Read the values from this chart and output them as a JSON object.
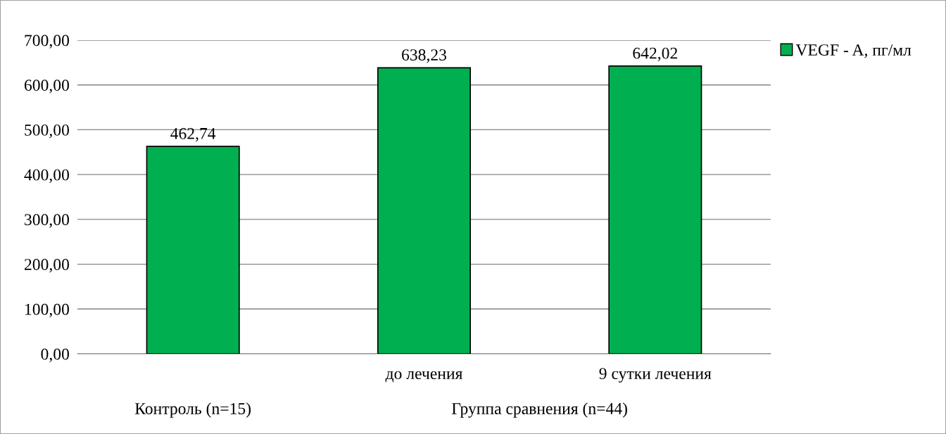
{
  "chart_data": {
    "type": "bar",
    "categories": [
      null,
      "до лечения",
      "9 сутки лечения"
    ],
    "series": [
      {
        "name": "VEGF - A, пг/мл",
        "color": "#00b050",
        "values": [
          462.74,
          638.23,
          642.02
        ],
        "value_labels": [
          "462,74",
          "638,23",
          "642,02"
        ]
      }
    ],
    "annotations": [
      "Контроль (n=15)",
      "Группа сравнения (n=44)"
    ],
    "ylim": [
      0,
      700
    ],
    "yticks": [
      {
        "value": 0,
        "label": "0,00"
      },
      {
        "value": 100,
        "label": "100,00"
      },
      {
        "value": 200,
        "label": "200,00"
      },
      {
        "value": 300,
        "label": "300,00"
      },
      {
        "value": 400,
        "label": "400,00"
      },
      {
        "value": 500,
        "label": "500,00"
      },
      {
        "value": 600,
        "label": "600,00"
      },
      {
        "value": 700,
        "label": "700,00"
      }
    ],
    "grid": "y",
    "legend": "top right"
  }
}
